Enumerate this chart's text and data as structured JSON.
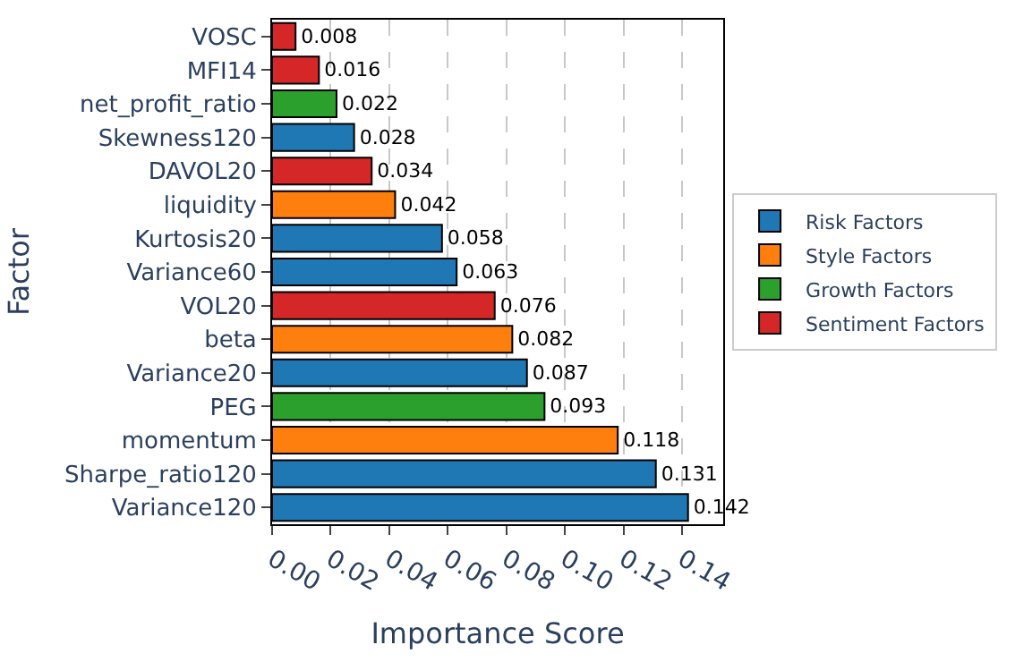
{
  "chart_data": {
    "type": "bar",
    "orientation": "horizontal",
    "xlabel": "Importance Score",
    "ylabel": "Factor",
    "categories": [
      "VOSC",
      "MFI14",
      "net_profit_ratio",
      "Skewness120",
      "DAVOL20",
      "liquidity",
      "Kurtosis20",
      "Variance60",
      "VOL20",
      "beta",
      "Variance20",
      "PEG",
      "momentum",
      "Sharpe_ratio120",
      "Variance120"
    ],
    "series": [
      {
        "name": "Risk Factors",
        "color": "#1f77b4",
        "values": [
          null,
          null,
          null,
          0.028,
          null,
          null,
          0.058,
          0.063,
          null,
          null,
          0.087,
          null,
          null,
          0.131,
          0.142
        ]
      },
      {
        "name": "Style Factors",
        "color": "#ff7f0e",
        "values": [
          null,
          null,
          null,
          null,
          null,
          0.042,
          null,
          null,
          null,
          0.082,
          null,
          null,
          0.118,
          null,
          null
        ]
      },
      {
        "name": "Growth Factors",
        "color": "#2ca02c",
        "values": [
          null,
          null,
          0.022,
          null,
          null,
          null,
          null,
          null,
          null,
          null,
          null,
          0.093,
          null,
          null,
          null
        ]
      },
      {
        "name": "Sentiment Factors",
        "color": "#d62728",
        "values": [
          0.008,
          0.016,
          null,
          null,
          0.034,
          null,
          null,
          null,
          0.076,
          null,
          null,
          null,
          null,
          null,
          null
        ]
      }
    ],
    "xlim": [
      0,
      0.154
    ],
    "xticks": [
      {
        "value": 0,
        "label": "0.00"
      },
      {
        "value": 0.02,
        "label": "0.02"
      },
      {
        "value": 0.04,
        "label": "0.04"
      },
      {
        "value": 0.06,
        "label": "0.06"
      },
      {
        "value": 0.08,
        "label": "0.08"
      },
      {
        "value": 0.1,
        "label": "0.10"
      },
      {
        "value": 0.12,
        "label": "0.12"
      },
      {
        "value": 0.14,
        "label": "0.14"
      }
    ],
    "grid": "x",
    "legend": "right",
    "data_labels": true
  }
}
